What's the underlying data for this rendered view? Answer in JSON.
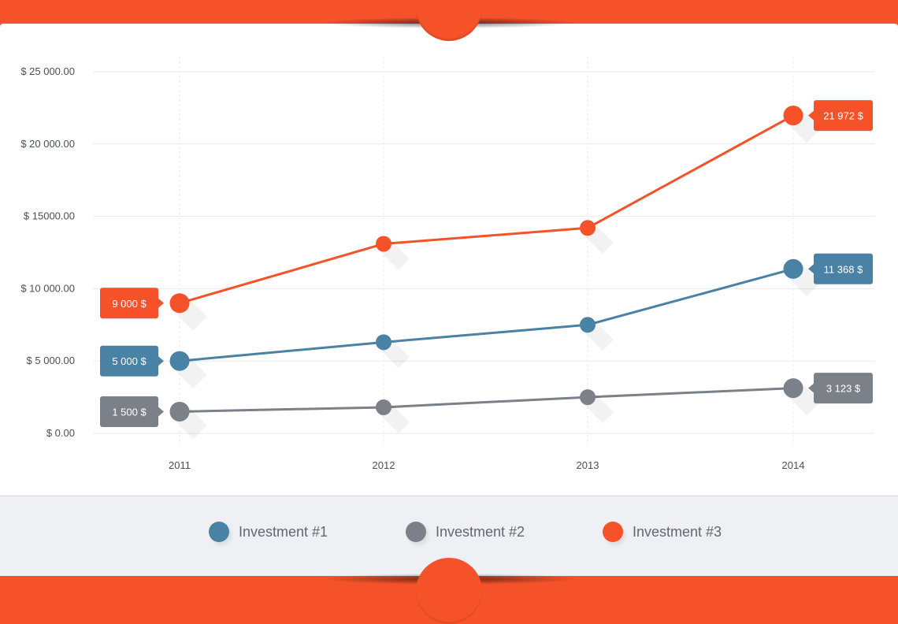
{
  "chart_data": {
    "type": "line",
    "categories": [
      "2011",
      "2012",
      "2013",
      "2014"
    ],
    "y_tick_labels": [
      "$ 0.00",
      "$ 5 000.00",
      "$ 10 000.00",
      "$ 15000.00",
      "$ 20 000.00",
      "$ 25 000.00"
    ],
    "y_tick_values": [
      0,
      5000,
      10000,
      15000,
      20000,
      25000
    ],
    "ylim": [
      0,
      25000
    ],
    "series": [
      {
        "name": "Investment #1",
        "color": "#4a82a5",
        "values": [
          5000,
          6300,
          7500,
          11368
        ],
        "start_label": "5 000 $",
        "end_label": "11 368 $"
      },
      {
        "name": "Investment #2",
        "color": "#7b8089",
        "values": [
          1500,
          1800,
          2500,
          3123
        ],
        "start_label": "1 500 $",
        "end_label": "3 123 $"
      },
      {
        "name": "Investment #3",
        "color": "#f5522a",
        "values": [
          9000,
          13100,
          14200,
          21972
        ],
        "start_label": "9 000 $",
        "end_label": "21 972 $"
      }
    ],
    "grid": true,
    "legend_position": "bottom"
  },
  "legend": {
    "items": [
      {
        "label": "Investment #1",
        "color": "#4a82a5"
      },
      {
        "label": "Investment #2",
        "color": "#7b8089"
      },
      {
        "label": "Investment #3",
        "color": "#f5522a"
      }
    ]
  },
  "colors": {
    "accent": "#f5522a",
    "panel": "#ffffff",
    "legend_bg": "#eef0f3"
  }
}
